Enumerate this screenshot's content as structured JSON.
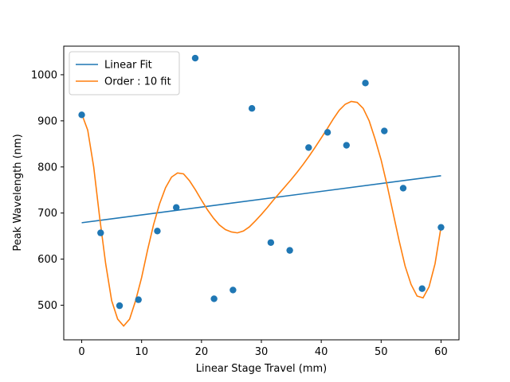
{
  "chart_data": {
    "type": "scatter",
    "title": "",
    "xlabel": "Linear Stage Travel (mm)",
    "ylabel": "Peak Wavelength (nm)",
    "xlim": [
      -3,
      63
    ],
    "ylim": [
      425,
      1062
    ],
    "xticks": [
      0,
      10,
      20,
      30,
      40,
      50,
      60
    ],
    "yticks": [
      500,
      600,
      700,
      800,
      900,
      1000
    ],
    "grid": false,
    "legend_position": "top-left",
    "series": [
      {
        "name": "Linear Fit",
        "kind": "line",
        "color": "#1f77b4",
        "x": [
          0,
          60
        ],
        "y": [
          679,
          781
        ]
      },
      {
        "name": "Order : 10 fit",
        "kind": "line",
        "color": "#ff7f0e",
        "x": [
          0,
          1,
          2,
          3,
          4,
          5,
          6,
          7,
          8,
          9,
          10,
          11,
          12,
          13,
          14,
          15,
          16,
          17,
          18,
          19,
          20,
          21,
          22,
          23,
          24,
          25,
          26,
          27,
          28,
          29,
          30,
          31,
          32,
          33,
          34,
          35,
          36,
          37,
          38,
          39,
          40,
          41,
          42,
          43,
          44,
          45,
          46,
          47,
          48,
          49,
          50,
          51,
          52,
          53,
          54,
          55,
          56,
          57,
          58,
          59,
          60
        ],
        "y": [
          915,
          880,
          800,
          690,
          590,
          510,
          470,
          455,
          470,
          510,
          560,
          620,
          675,
          720,
          755,
          778,
          787,
          785,
          770,
          750,
          728,
          707,
          689,
          674,
          664,
          659,
          657,
          661,
          670,
          683,
          697,
          712,
          728,
          743,
          758,
          773,
          789,
          806,
          824,
          843,
          863,
          883,
          904,
          923,
          936,
          942,
          940,
          927,
          900,
          860,
          815,
          760,
          700,
          640,
          585,
          545,
          520,
          516,
          540,
          590,
          670
        ]
      },
      {
        "name": "",
        "kind": "scatter",
        "color": "#1f77b4",
        "x": [
          0,
          3.16,
          6.32,
          9.47,
          12.63,
          15.79,
          18.95,
          22.1,
          25.26,
          28.42,
          31.58,
          34.74,
          37.89,
          41.05,
          44.21,
          47.37,
          50.53,
          53.68,
          56.84,
          60
        ],
        "y": [
          913,
          657,
          499,
          512,
          661,
          712,
          1036,
          514,
          533,
          927,
          636,
          619,
          842,
          875,
          847,
          982,
          878,
          754,
          536,
          669
        ]
      }
    ]
  }
}
